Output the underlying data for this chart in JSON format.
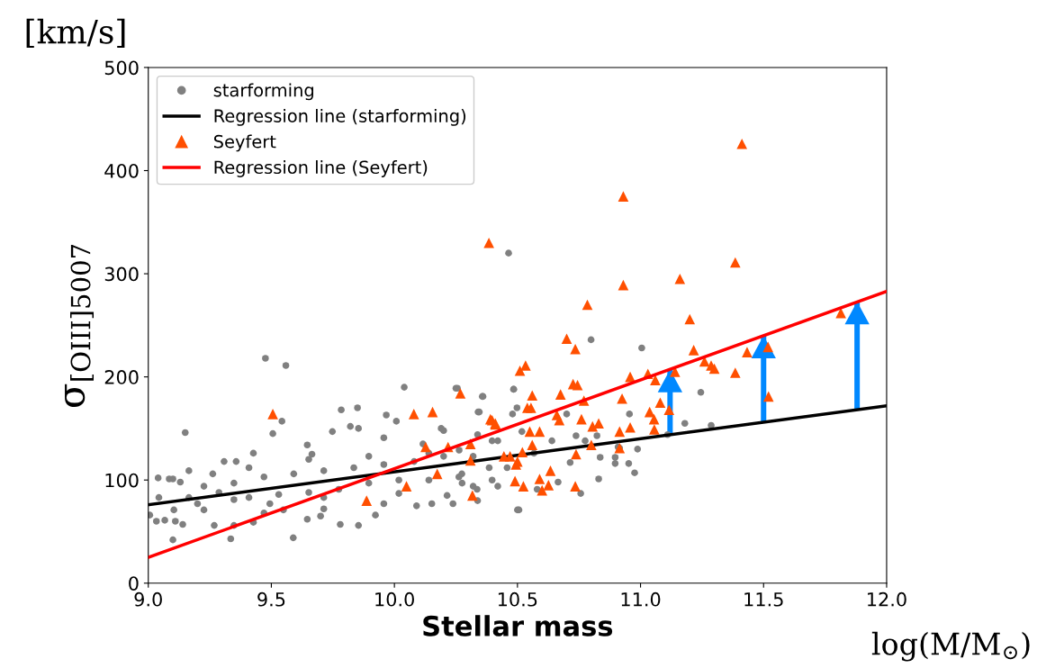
{
  "chart_data": {
    "type": "scatter",
    "xlabel": "Stellar mass",
    "ylabel": "σ$_{[OIII]5007}$",
    "xlim": [
      9.0,
      12.0
    ],
    "xticks": [
      {
        "value": 9.0,
        "label": "9.0"
      },
      {
        "value": 9.5,
        "label": "9.5"
      },
      {
        "value": 10.0,
        "label": "10.0"
      },
      {
        "value": 10.5,
        "label": "10.5"
      },
      {
        "value": 11.0,
        "label": "11.0"
      },
      {
        "value": 11.5,
        "label": "11.5"
      },
      {
        "value": 12.0,
        "label": "12.0"
      }
    ],
    "ylim": [
      0,
      500
    ],
    "yticks": [
      0,
      100,
      200,
      300,
      400,
      500
    ],
    "grid": false,
    "legend": "top left",
    "annotations": [
      "[km/s]",
      "log(M/M$_{⊙}$)"
    ],
    "series": [
      {
        "name": "starforming",
        "marker": "circle",
        "color": "#808080",
        "x": [
          9.476,
          9.559,
          9.15,
          9.543,
          9.506,
          10.04,
          10.25,
          10.36,
          10.345,
          10.485,
          9.784,
          9.85,
          9.967,
          10.008,
          9.04,
          9.085,
          9.1,
          9.13,
          9.1,
          9.335,
          9.589,
          9.854,
          9.923,
          9.78,
          9.033,
          9.067,
          9.006,
          9.11,
          9.14,
          9.646,
          9.549,
          9.268,
          9.348,
          9.427,
          9.7,
          9.494,
          9.2,
          9.262,
          9.308,
          9.357,
          9.427,
          9.646,
          9.665,
          9.821,
          9.748,
          9.854,
          9.957,
          10.116,
          10.2,
          10.338,
          10.48,
          10.42,
          10.274,
          10.42,
          10.238,
          10.09,
          10.152,
          10.338,
          10.5,
          9.348,
          9.713,
          10.018,
          10.32,
          9.226,
          9.348,
          9.47,
          9.591,
          9.713,
          9.835,
          9.957,
          10.08,
          10.2,
          10.32,
          9.165,
          9.287,
          9.409,
          9.53,
          9.652,
          9.774,
          9.896,
          10.018,
          10.14,
          10.262,
          9.165,
          9.409,
          9.652,
          9.896,
          10.14,
          10.385,
          9.043,
          9.104,
          9.226,
          9.47,
          9.713,
          9.957,
          10.464,
          10.799,
          11.005,
          11.245,
          10.256,
          10.357,
          10.484,
          10.34,
          10.498,
          10.7,
          10.955,
          11.18,
          10.775,
          10.836,
          10.897,
          10.988,
          10.976,
          10.897,
          10.952,
          10.83,
          10.757,
          10.506,
          10.665,
          10.58,
          10.714,
          10.64,
          10.567,
          10.458,
          10.397,
          10.336,
          10.275,
          10.214,
          10.738,
          10.823,
          10.909,
          10.518,
          10.397,
          10.263,
          10.19,
          10.915,
          11.287,
          11.11
        ],
        "values": [
          218,
          211,
          146,
          157,
          145,
          190,
          189,
          181,
          166,
          188,
          168,
          170,
          163,
          157,
          102,
          101,
          101,
          98,
          42,
          43,
          44,
          56,
          66,
          57,
          60,
          61,
          66,
          60,
          57,
          62,
          71,
          56,
          56,
          59,
          65,
          77,
          77,
          106,
          118,
          118,
          126,
          134,
          125,
          152,
          147,
          150,
          141,
          135,
          148,
          144,
          164,
          138,
          106,
          94,
          77,
          75,
          77,
          80,
          71,
          81,
          83,
          87,
          94,
          94,
          97,
          103,
          106,
          109,
          112,
          115,
          118,
          123,
          123,
          83,
          88,
          83,
          86,
          88,
          91,
          97,
          100,
          100,
          103,
          109,
          112,
          120,
          123,
          126,
          112,
          83,
          71,
          71,
          68,
          72,
          77,
          320,
          236,
          228,
          185,
          189,
          181,
          188,
          166,
          170,
          164,
          164,
          155,
          138,
          122,
          122,
          130,
          107,
          116,
          116,
          101,
          87,
          71,
          98,
          91,
          117,
          138,
          126,
          112,
          100,
          91,
          97,
          85,
          143,
          143,
          132,
          147,
          138,
          129,
          150,
          131,
          153,
          144
        ]
      },
      {
        "name": "Regression line (starforming)",
        "type": "line",
        "marker": "none",
        "line_style": "solid",
        "color": "#000000",
        "x": [
          9.0,
          12.0
        ],
        "values": [
          76,
          172
        ]
      },
      {
        "name": "Seyfert",
        "marker": "triangle",
        "color": "#ff4f00",
        "x": [
          9.506,
          9.887,
          10.049,
          10.079,
          10.155,
          10.268,
          10.127,
          10.218,
          10.174,
          10.309,
          10.309,
          10.317,
          10.39,
          10.41,
          10.445,
          10.47,
          10.5,
          10.49,
          10.51,
          10.384,
          10.533,
          10.7,
          10.735,
          10.784,
          10.93,
          11.16,
          11.2,
          11.216,
          10.726,
          10.744,
          10.675,
          10.56,
          10.54,
          10.555,
          10.397,
          10.41,
          10.66,
          10.67,
          10.77,
          10.925,
          10.958,
          11.03,
          11.06,
          11.14,
          11.08,
          11.037,
          11.055,
          11.056,
          11.116,
          10.76,
          10.805,
          10.83,
          10.915,
          10.958,
          10.55,
          10.59,
          10.56,
          10.52,
          10.494,
          10.8,
          10.738,
          10.634,
          10.59,
          10.626,
          10.524,
          10.6,
          10.735,
          11.412,
          10.93,
          11.385,
          11.814,
          11.433,
          11.518,
          11.26,
          11.287,
          11.3,
          11.385,
          11.52,
          10.915
        ],
        "values": [
          164,
          80,
          94,
          164,
          166,
          184,
          132,
          132,
          106,
          135,
          119,
          85,
          159,
          154,
          123,
          123,
          118,
          99,
          206,
          330,
          211,
          237,
          227,
          270,
          289,
          295,
          256,
          226,
          193,
          192,
          183,
          182,
          170,
          170,
          158,
          155,
          163,
          158,
          177,
          179,
          200,
          203,
          197,
          205,
          175,
          166,
          159,
          149,
          168,
          159,
          152,
          155,
          147,
          151,
          147,
          147,
          134,
          127,
          115,
          134,
          125,
          109,
          101,
          95,
          94,
          90,
          94,
          426,
          375,
          311,
          262,
          224,
          229,
          215,
          211,
          208,
          204,
          181,
          131
        ]
      },
      {
        "name": "Regression line (Seyfert)",
        "type": "line",
        "marker": "none",
        "line_style": "solid",
        "color": "#ff0000",
        "x": [
          9.0,
          12.0
        ],
        "values": [
          25,
          283
        ]
      },
      {
        "type": "bar",
        "color": "#0088ff",
        "x": [
          11.12,
          11.5,
          11.88
        ],
        "base": [
          144,
          156,
          168
        ],
        "values": [
          63,
          84,
          105
        ]
      }
    ]
  }
}
